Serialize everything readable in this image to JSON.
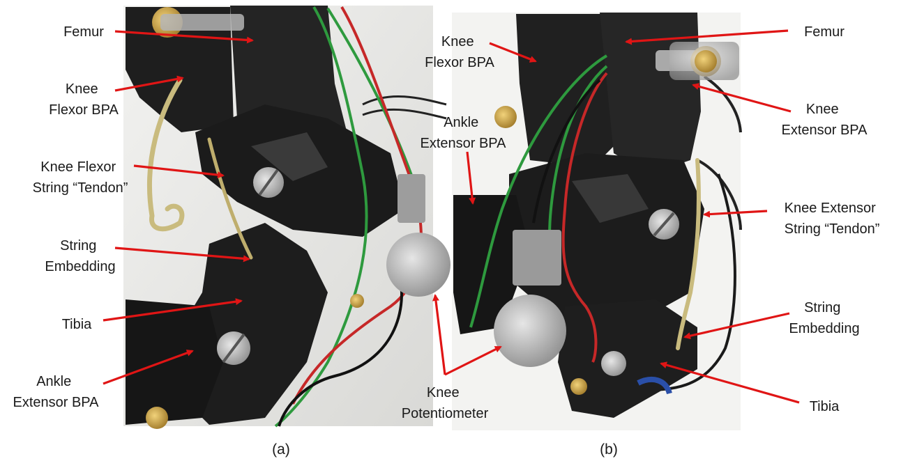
{
  "panel_a": {
    "caption": "(a)",
    "labels": {
      "femur": [
        "Femur"
      ],
      "knee_flexor_bpa": [
        "Knee",
        "Flexor BPA"
      ],
      "knee_flexor_string": [
        "Knee Flexor",
        "String “Tendon”"
      ],
      "string_embedding": [
        "String",
        "Embedding"
      ],
      "tibia": [
        "Tibia"
      ],
      "ankle_extensor_bpa": [
        "Ankle",
        "Extensor BPA"
      ]
    }
  },
  "panel_center": {
    "labels": {
      "ankle_extensor_bpa": [
        "Ankle",
        "Extensor BPA"
      ],
      "knee_potentiometer": [
        "Knee",
        "Potentiometer"
      ]
    }
  },
  "panel_b": {
    "caption": "(b)",
    "labels": {
      "knee_flexor_bpa": [
        "Knee",
        "Flexor BPA"
      ],
      "femur": [
        "Femur"
      ],
      "knee_extensor_bpa": [
        "Knee",
        "Extensor BPA"
      ],
      "knee_extensor_string": [
        "Knee Extensor",
        "String “Tendon”"
      ],
      "string_embedding": [
        "String",
        "Embedding"
      ],
      "tibia": [
        "Tibia"
      ]
    }
  },
  "colors": {
    "arrow": "#e01515",
    "frame": "#1c1c1c",
    "wire_green": "#2e9a3e",
    "wire_red": "#c62828"
  }
}
